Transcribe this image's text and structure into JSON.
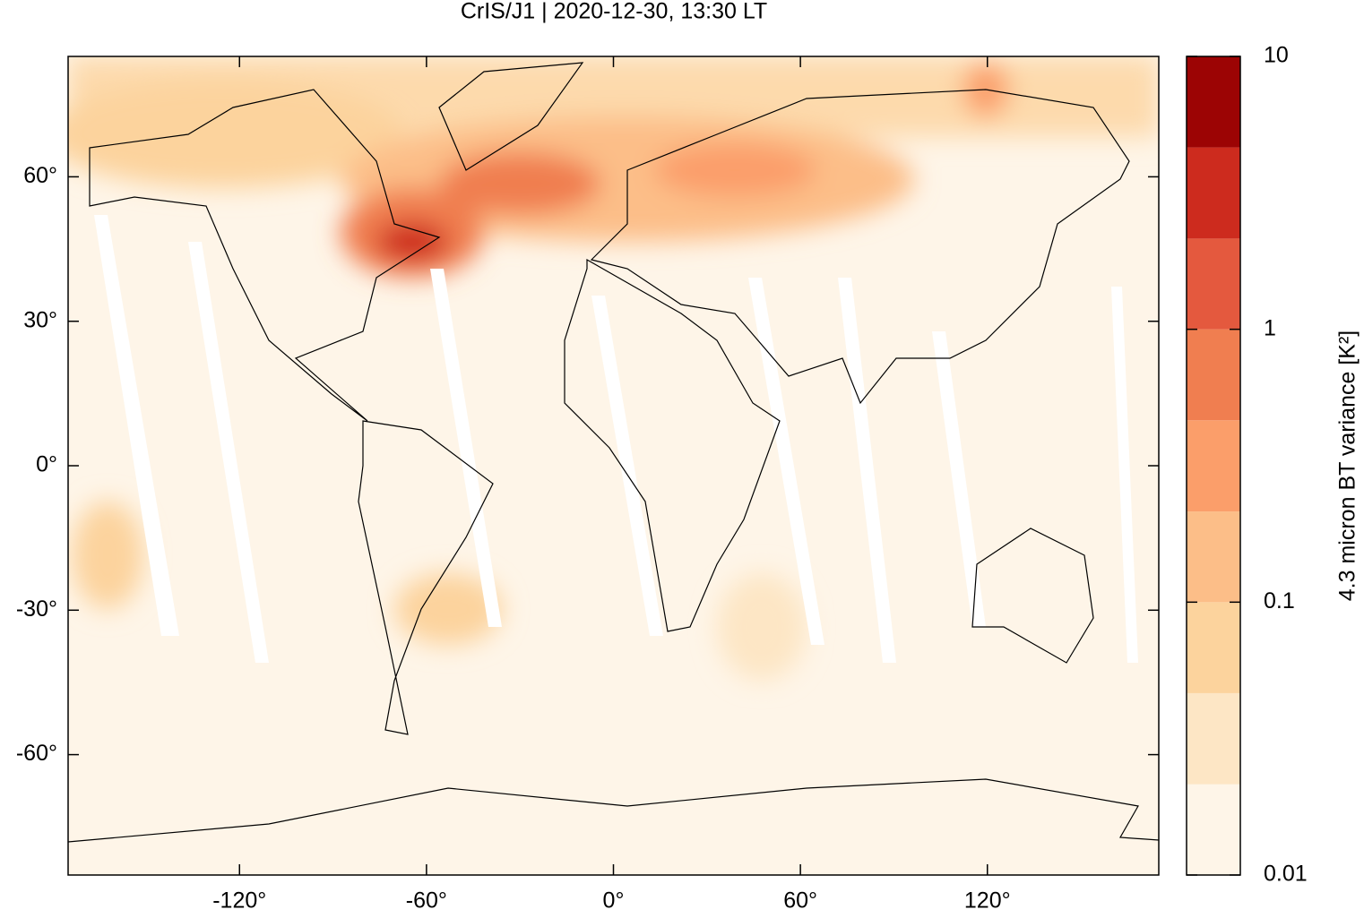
{
  "chart_data": {
    "type": "heatmap",
    "title": "CrIS/J1 | 2020-12-30, 13:30 LT",
    "xlim": [
      -175,
      175
    ],
    "ylim": [
      -85,
      85
    ],
    "xticks": [
      {
        "value": -120,
        "label": "-120°"
      },
      {
        "value": -60,
        "label": "-60°"
      },
      {
        "value": 0,
        "label": "0°"
      },
      {
        "value": 60,
        "label": "60°"
      },
      {
        "value": 120,
        "label": "120°"
      }
    ],
    "yticks": [
      {
        "value": 60,
        "label": "60°"
      },
      {
        "value": 30,
        "label": "30°"
      },
      {
        "value": 0,
        "label": "0°"
      },
      {
        "value": -30,
        "label": "-30°"
      },
      {
        "value": -60,
        "label": "-60°"
      }
    ],
    "colorbar": {
      "label": "4.3 micron BT variance [K²]",
      "scale": "log",
      "lim": [
        0.01,
        10
      ],
      "ticks": [
        0.01,
        0.1,
        1,
        10
      ],
      "levels": [
        0.01,
        0.0215,
        0.0464,
        0.1,
        0.215,
        0.464,
        1,
        2.15,
        4.64,
        10
      ],
      "colors": [
        "#fef5e8",
        "#fde6c5",
        "#fcd39d",
        "#fcbe88",
        "#fb9e6a",
        "#f07e50",
        "#e4593e",
        "#cd2b1e",
        "#9c0404"
      ]
    }
  }
}
